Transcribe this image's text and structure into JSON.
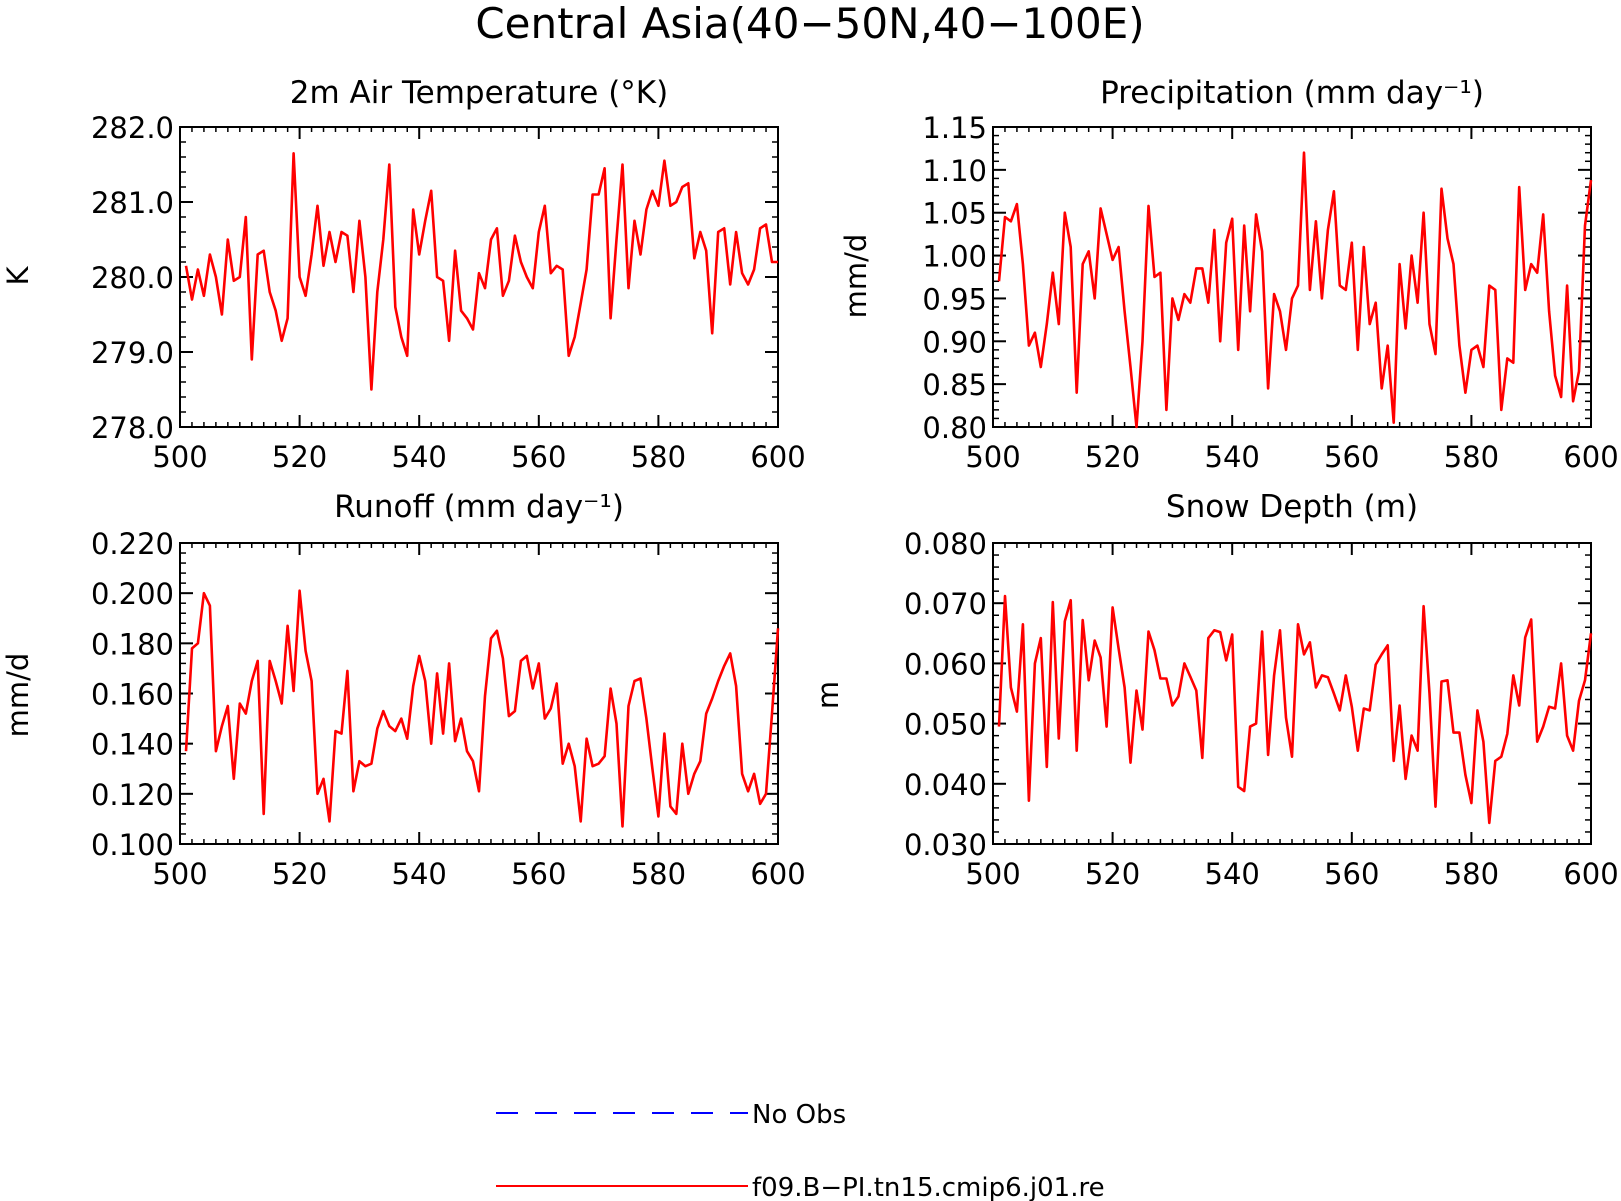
{
  "figure": {
    "title": "Central Asia(40−50N,40−100E)",
    "colors": {
      "model": "#ff0000",
      "obs": "#0000ff",
      "axis": "#000000"
    }
  },
  "legend": {
    "placement": "bottom-center",
    "items": [
      {
        "label": "No Obs",
        "color": "#0000ff",
        "style": "dashed"
      },
      {
        "label": "f09.B−PI.tn15.cmip6.j01.re",
        "color": "#ff0000",
        "style": "solid"
      }
    ]
  },
  "chart_data": [
    {
      "type": "line",
      "title": "2m Air Temperature (°K)",
      "xlabel": "",
      "ylabel": "K",
      "xlim": [
        500,
        600
      ],
      "ylim": [
        278.0,
        282.0
      ],
      "xticks": [
        500,
        520,
        540,
        560,
        580,
        600
      ],
      "yticks": [
        278.0,
        279.0,
        280.0,
        281.0,
        282.0
      ],
      "ytick_labels": [
        "278.0",
        "279.0",
        "280.0",
        "281.0",
        "282.0"
      ],
      "grid": false,
      "x_start": 501,
      "x_step": 1,
      "series": [
        {
          "name": "f09.B−PI.tn15.cmip6.j01.re",
          "color": "#ff0000",
          "values": [
            280.15,
            279.7,
            280.1,
            279.75,
            280.3,
            280.0,
            279.5,
            280.5,
            279.95,
            280.0,
            280.8,
            278.9,
            280.3,
            280.35,
            279.8,
            279.55,
            279.15,
            279.45,
            281.65,
            280.0,
            279.75,
            280.3,
            280.95,
            280.15,
            280.6,
            280.2,
            280.6,
            280.55,
            279.8,
            280.75,
            280.0,
            278.5,
            279.8,
            280.5,
            281.5,
            279.6,
            279.2,
            278.95,
            280.9,
            280.3,
            280.75,
            281.15,
            280.0,
            279.95,
            279.15,
            280.35,
            279.55,
            279.45,
            279.3,
            280.05,
            279.85,
            280.5,
            280.65,
            279.75,
            279.95,
            280.55,
            280.2,
            280.0,
            279.85,
            280.6,
            280.95,
            280.05,
            280.15,
            280.1,
            278.95,
            279.2,
            279.65,
            280.1,
            281.1,
            281.1,
            281.45,
            279.45,
            280.5,
            281.5,
            279.85,
            280.75,
            280.3,
            280.9,
            281.15,
            280.95,
            281.55,
            280.95,
            281.0,
            281.2,
            281.25,
            280.25,
            280.6,
            280.35,
            279.25,
            280.6,
            280.65,
            279.9,
            280.6,
            280.05,
            279.9,
            280.1,
            280.65,
            280.7,
            280.2,
            280.2
          ]
        }
      ]
    },
    {
      "type": "line",
      "title": "Precipitation (mm day⁻¹)",
      "xlabel": "",
      "ylabel": "mm/d",
      "xlim": [
        500,
        600
      ],
      "ylim": [
        0.8,
        1.15
      ],
      "xticks": [
        500,
        520,
        540,
        560,
        580,
        600
      ],
      "yticks": [
        0.8,
        0.85,
        0.9,
        0.95,
        1.0,
        1.05,
        1.1,
        1.15
      ],
      "ytick_labels": [
        "0.80",
        "0.85",
        "0.90",
        "0.95",
        "1.00",
        "1.05",
        "1.10",
        "1.15"
      ],
      "grid": false,
      "x_start": 501,
      "x_step": 1,
      "series": [
        {
          "name": "f09.B−PI.tn15.cmip6.j01.re",
          "color": "#ff0000",
          "values": [
            0.97,
            1.045,
            1.04,
            1.06,
            0.99,
            0.895,
            0.91,
            0.87,
            0.92,
            0.98,
            0.92,
            1.05,
            1.01,
            0.84,
            0.99,
            1.005,
            0.95,
            1.055,
            1.025,
            0.995,
            1.01,
            0.935,
            0.87,
            0.8,
            0.9,
            1.058,
            0.975,
            0.98,
            0.82,
            0.95,
            0.925,
            0.955,
            0.945,
            0.985,
            0.985,
            0.945,
            1.03,
            0.9,
            1.015,
            1.043,
            0.89,
            1.035,
            0.935,
            1.048,
            1.005,
            0.845,
            0.955,
            0.935,
            0.89,
            0.95,
            0.965,
            1.12,
            0.96,
            1.04,
            0.95,
            1.03,
            1.075,
            0.965,
            0.96,
            1.015,
            0.89,
            1.01,
            0.92,
            0.945,
            0.845,
            0.895,
            0.805,
            0.99,
            0.915,
            1.0,
            0.945,
            1.05,
            0.92,
            0.885,
            1.078,
            1.02,
            0.99,
            0.895,
            0.84,
            0.89,
            0.895,
            0.87,
            0.965,
            0.96,
            0.82,
            0.88,
            0.875,
            1.08,
            0.96,
            0.99,
            0.98,
            1.048,
            0.935,
            0.86,
            0.835,
            0.965,
            0.83,
            0.865,
            1.035,
            1.088
          ]
        }
      ]
    },
    {
      "type": "line",
      "title": "Runoff (mm day⁻¹)",
      "xlabel": "",
      "ylabel": "mm/d",
      "xlim": [
        500,
        600
      ],
      "ylim": [
        0.1,
        0.22
      ],
      "xticks": [
        500,
        520,
        540,
        560,
        580,
        600
      ],
      "yticks": [
        0.1,
        0.12,
        0.14,
        0.16,
        0.18,
        0.2,
        0.22
      ],
      "ytick_labels": [
        "0.100",
        "0.120",
        "0.140",
        "0.160",
        "0.180",
        "0.200",
        "0.220"
      ],
      "grid": false,
      "x_start": 501,
      "x_step": 1,
      "series": [
        {
          "name": "f09.B−PI.tn15.cmip6.j01.re",
          "color": "#ff0000",
          "values": [
            0.137,
            0.178,
            0.18,
            0.2,
            0.195,
            0.137,
            0.147,
            0.155,
            0.126,
            0.156,
            0.152,
            0.165,
            0.173,
            0.112,
            0.173,
            0.165,
            0.156,
            0.187,
            0.161,
            0.201,
            0.177,
            0.165,
            0.12,
            0.126,
            0.109,
            0.145,
            0.144,
            0.169,
            0.121,
            0.133,
            0.131,
            0.132,
            0.146,
            0.153,
            0.147,
            0.145,
            0.15,
            0.142,
            0.163,
            0.175,
            0.165,
            0.14,
            0.168,
            0.144,
            0.172,
            0.141,
            0.15,
            0.137,
            0.133,
            0.121,
            0.159,
            0.182,
            0.185,
            0.174,
            0.151,
            0.153,
            0.173,
            0.175,
            0.162,
            0.172,
            0.15,
            0.154,
            0.164,
            0.132,
            0.14,
            0.131,
            0.109,
            0.142,
            0.131,
            0.132,
            0.135,
            0.162,
            0.148,
            0.107,
            0.155,
            0.165,
            0.166,
            0.15,
            0.13,
            0.111,
            0.144,
            0.115,
            0.112,
            0.14,
            0.12,
            0.128,
            0.133,
            0.152,
            0.158,
            0.165,
            0.171,
            0.176,
            0.163,
            0.128,
            0.121,
            0.128,
            0.116,
            0.12,
            0.152,
            0.186
          ]
        }
      ]
    },
    {
      "type": "line",
      "title": "Snow Depth (m)",
      "xlabel": "",
      "ylabel": "m",
      "xlim": [
        500,
        600
      ],
      "ylim": [
        0.03,
        0.08
      ],
      "xticks": [
        500,
        520,
        540,
        560,
        580,
        600
      ],
      "yticks": [
        0.03,
        0.04,
        0.05,
        0.06,
        0.07,
        0.08
      ],
      "ytick_labels": [
        "0.030",
        "0.040",
        "0.050",
        "0.060",
        "0.070",
        "0.080"
      ],
      "grid": false,
      "x_start": 501,
      "x_step": 1,
      "series": [
        {
          "name": "f09.B−PI.tn15.cmip6.j01.re",
          "color": "#ff0000",
          "values": [
            0.0495,
            0.0712,
            0.056,
            0.052,
            0.0665,
            0.0372,
            0.06,
            0.0642,
            0.0428,
            0.0702,
            0.0475,
            0.067,
            0.0705,
            0.0455,
            0.0672,
            0.0572,
            0.0638,
            0.061,
            0.0495,
            0.0693,
            0.0625,
            0.056,
            0.0435,
            0.0555,
            0.049,
            0.0653,
            0.0622,
            0.0575,
            0.0575,
            0.053,
            0.0545,
            0.06,
            0.0578,
            0.0555,
            0.0443,
            0.0642,
            0.0655,
            0.0652,
            0.0605,
            0.0648,
            0.0395,
            0.0388,
            0.0495,
            0.05,
            0.0653,
            0.0448,
            0.058,
            0.0655,
            0.051,
            0.0445,
            0.0665,
            0.0615,
            0.0635,
            0.056,
            0.058,
            0.0577,
            0.055,
            0.0522,
            0.058,
            0.0528,
            0.0455,
            0.0525,
            0.0522,
            0.0598,
            0.0615,
            0.063,
            0.0438,
            0.053,
            0.0408,
            0.048,
            0.0455,
            0.0695,
            0.055,
            0.0362,
            0.057,
            0.0572,
            0.0485,
            0.0485,
            0.0415,
            0.0368,
            0.0522,
            0.047,
            0.0335,
            0.0438,
            0.0445,
            0.0483,
            0.058,
            0.053,
            0.0643,
            0.0673,
            0.047,
            0.0495,
            0.0528,
            0.0525,
            0.06,
            0.048,
            0.0455,
            0.0538,
            0.0572,
            0.065
          ]
        }
      ]
    }
  ]
}
